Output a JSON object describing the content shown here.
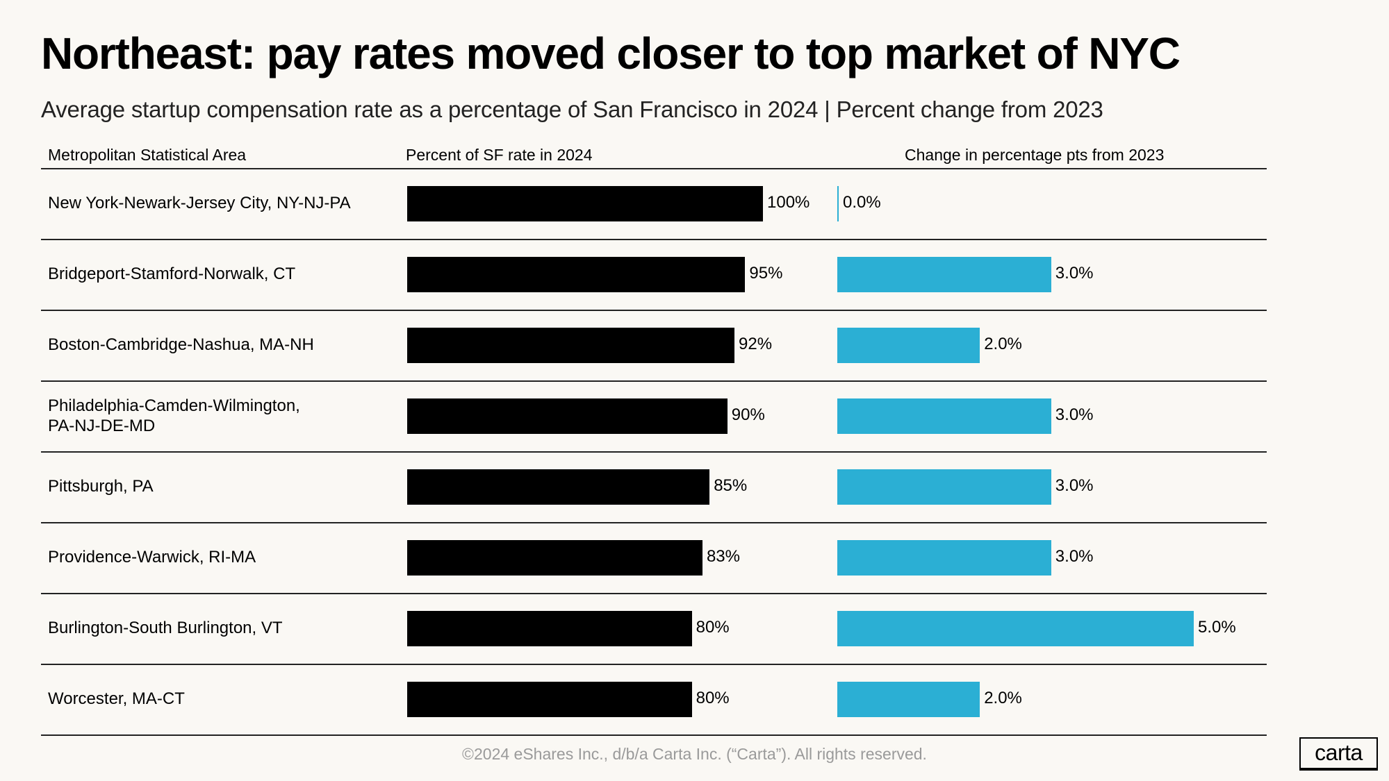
{
  "chart_data": {
    "type": "bar",
    "title": "Northeast: pay rates moved closer to top market of NYC",
    "subtitle": "Average startup compensation rate as a percentage of San Francisco in 2024 | Percent change from 2023",
    "columns": [
      "Metropolitan Statistical Area",
      "Percent of SF rate in 2024",
      "Change in percentage pts from 2023"
    ],
    "categories": [
      "New York-Newark-Jersey City, NY-NJ-PA",
      "Bridgeport-Stamford-Norwalk, CT",
      "Boston-Cambridge-Nashua, MA-NH",
      "Philadelphia-Camden-Wilmington,\nPA-NJ-DE-MD",
      "Pittsburgh, PA",
      "Providence-Warwick, RI-MA",
      "Burlington-South Burlington, VT",
      "Worcester, MA-CT"
    ],
    "series": [
      {
        "name": "Percent of SF rate in 2024",
        "values": [
          100,
          95,
          92,
          90,
          85,
          83,
          80,
          80
        ],
        "labels": [
          "100%",
          "95%",
          "92%",
          "90%",
          "85%",
          "83%",
          "80%",
          "80%"
        ],
        "color": "#000000",
        "xlim": [
          0,
          100
        ]
      },
      {
        "name": "Change in percentage pts from 2023",
        "values": [
          0.0,
          3.0,
          2.0,
          3.0,
          3.0,
          3.0,
          5.0,
          2.0
        ],
        "labels": [
          "0.0%",
          "3.0%",
          "2.0%",
          "3.0%",
          "3.0%",
          "3.0%",
          "5.0%",
          "2.0%"
        ],
        "color": "#2bafd4",
        "xlim": [
          0,
          5
        ]
      }
    ],
    "grid": false,
    "legend": "none"
  },
  "footer": "©2024 eShares Inc., d/b/a Carta Inc. (“Carta”). All rights reserved.",
  "logo": "carta"
}
